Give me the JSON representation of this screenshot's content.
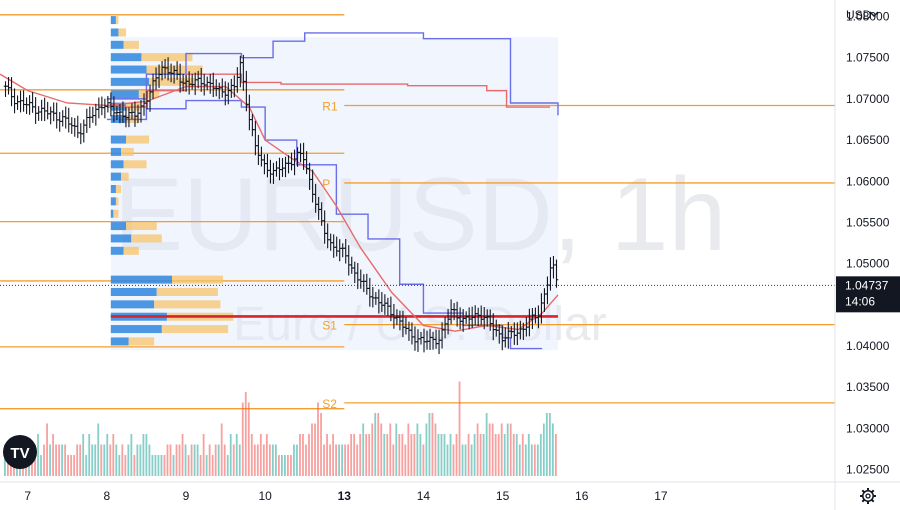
{
  "currency_selector": {
    "label": "USD",
    "icon": "chevron-down-icon"
  },
  "watermark": {
    "symbol": "EURUSD, 1h",
    "description": "Euro / U.S. Dollar"
  },
  "price_tag": {
    "price": "1.04737",
    "countdown": "14:06"
  },
  "settings_icon": "gear-icon",
  "logo": "TV",
  "colors": {
    "up": "#26a69a",
    "down": "#ef5350",
    "level": "#f59d2a",
    "vwap": "#6a6ee8",
    "ma": "#e86a6a",
    "poc": "#d8232a",
    "vp_blue": "#2e86de",
    "vp_orange": "#f5c36a"
  },
  "chart_data": {
    "type": "candlestick",
    "symbol": "EURUSD",
    "interval": "1h",
    "y_axis": {
      "range": [
        1.0235,
        1.082
      ],
      "ticks": [
        "1.08000",
        "1.07500",
        "1.07000",
        "1.06500",
        "1.06000",
        "1.05500",
        "1.05000",
        "1.04500",
        "1.04000",
        "1.03500",
        "1.03000",
        "1.02500"
      ],
      "tick_values": [
        1.08,
        1.075,
        1.07,
        1.065,
        1.06,
        1.055,
        1.05,
        1.045,
        1.04,
        1.035,
        1.03,
        1.025
      ]
    },
    "x_axis": {
      "range": [
        6.65,
        17.2
      ],
      "ticks": [
        "7",
        "8",
        "9",
        "10",
        "13",
        "14",
        "15",
        "16",
        "17"
      ],
      "tick_positions": [
        7,
        8,
        9,
        10,
        11,
        12,
        13,
        14,
        15
      ],
      "bold_ticks": [
        "13"
      ]
    },
    "last_price": 1.04737,
    "pivot_levels": [
      {
        "label": "R1",
        "value": 1.0692,
        "from": 11.0,
        "to": 17.2
      },
      {
        "label": "P",
        "value": 1.0598,
        "from": 11.0,
        "to": 17.2
      },
      {
        "label": "S1",
        "value": 1.0426,
        "from": 11.0,
        "to": 17.2
      },
      {
        "label": "S2",
        "value": 1.0331,
        "from": 11.0,
        "to": 17.2
      },
      {
        "label": "",
        "value": 1.0802,
        "from": 6.65,
        "to": 11.0
      },
      {
        "label": "",
        "value": 1.0711,
        "from": 6.65,
        "to": 11.0
      },
      {
        "label": "",
        "value": 1.0634,
        "from": 6.65,
        "to": 11.0
      },
      {
        "label": "",
        "value": 1.0551,
        "from": 6.65,
        "to": 11.0
      },
      {
        "label": "",
        "value": 1.0479,
        "from": 6.65,
        "to": 11.0
      },
      {
        "label": "",
        "value": 1.0399,
        "from": 6.65,
        "to": 11.0
      },
      {
        "label": "",
        "value": 1.0324,
        "from": 6.65,
        "to": 11.0
      }
    ],
    "close_path": [
      [
        6.65,
        1.0715
      ],
      [
        6.8,
        1.0698
      ],
      [
        7.0,
        1.069
      ],
      [
        7.2,
        1.0683
      ],
      [
        7.4,
        1.0676
      ],
      [
        7.6,
        1.066
      ],
      [
        7.7,
        1.0672
      ],
      [
        7.9,
        1.0695
      ],
      [
        8.05,
        1.0685
      ],
      [
        8.3,
        1.0678
      ],
      [
        8.5,
        1.0705
      ],
      [
        8.65,
        1.074
      ],
      [
        8.8,
        1.073
      ],
      [
        9.0,
        1.0718
      ],
      [
        9.2,
        1.0722
      ],
      [
        9.4,
        1.0708
      ],
      [
        9.6,
        1.0715
      ],
      [
        9.65,
        1.0745
      ],
      [
        9.75,
        1.069
      ],
      [
        9.85,
        1.064
      ],
      [
        9.95,
        1.062
      ],
      [
        10.1,
        1.061
      ],
      [
        10.3,
        1.0625
      ],
      [
        10.45,
        1.0633
      ],
      [
        10.6,
        1.058
      ],
      [
        10.7,
        1.0545
      ],
      [
        10.8,
        1.0525
      ],
      [
        11.0,
        1.051
      ],
      [
        11.1,
        1.049
      ],
      [
        11.25,
        1.047
      ],
      [
        11.4,
        1.0455
      ],
      [
        11.6,
        1.044
      ],
      [
        11.8,
        1.0415
      ],
      [
        12.0,
        1.0405
      ],
      [
        12.2,
        1.041
      ],
      [
        12.35,
        1.0445
      ],
      [
        12.5,
        1.043
      ],
      [
        12.7,
        1.044
      ],
      [
        12.9,
        1.042
      ],
      [
        13.0,
        1.041
      ],
      [
        13.2,
        1.0418
      ],
      [
        13.35,
        1.043
      ],
      [
        13.45,
        1.044
      ],
      [
        13.55,
        1.047
      ],
      [
        13.62,
        1.05
      ],
      [
        13.7,
        1.0474
      ]
    ],
    "moving_average": [
      [
        6.65,
        1.073
      ],
      [
        7.0,
        1.071
      ],
      [
        7.5,
        1.0695
      ],
      [
        8.0,
        1.0692
      ],
      [
        8.5,
        1.0697
      ],
      [
        9.0,
        1.0715
      ],
      [
        9.5,
        1.0715
      ],
      [
        9.8,
        1.069
      ],
      [
        10.0,
        1.065
      ],
      [
        10.3,
        1.063
      ],
      [
        10.6,
        1.0612
      ],
      [
        10.9,
        1.057
      ],
      [
        11.2,
        1.052
      ],
      [
        11.6,
        1.0465
      ],
      [
        12.0,
        1.0425
      ],
      [
        12.4,
        1.0418
      ],
      [
        12.8,
        1.0425
      ],
      [
        13.2,
        1.042
      ],
      [
        13.5,
        1.044
      ],
      [
        13.7,
        1.0462
      ]
    ],
    "vwap_upper": [
      [
        8.0,
        1.07
      ],
      [
        8.5,
        1.073
      ],
      [
        9.0,
        1.0755
      ],
      [
        9.7,
        1.075
      ],
      [
        10.1,
        1.077
      ],
      [
        10.5,
        1.078
      ],
      [
        11.4,
        1.078
      ],
      [
        12.0,
        1.0773
      ],
      [
        13.0,
        1.0773
      ],
      [
        13.1,
        1.0695
      ],
      [
        13.6,
        1.0695
      ],
      [
        13.7,
        1.068
      ]
    ],
    "vwap_mid": [
      [
        8.0,
        1.069
      ],
      [
        8.5,
        1.071
      ],
      [
        9.0,
        1.073
      ],
      [
        9.7,
        1.072
      ],
      [
        10.2,
        1.0718
      ],
      [
        11.0,
        1.0718
      ],
      [
        11.8,
        1.0716
      ],
      [
        12.8,
        1.071
      ],
      [
        13.0,
        1.071
      ],
      [
        13.05,
        1.069
      ],
      [
        13.6,
        1.069
      ]
    ],
    "vwap_lower": [
      [
        8.0,
        1.0675
      ],
      [
        8.5,
        1.0688
      ],
      [
        9.0,
        1.0698
      ],
      [
        9.7,
        1.069
      ],
      [
        10.0,
        1.065
      ],
      [
        10.4,
        1.062
      ],
      [
        10.9,
        1.056
      ],
      [
        11.3,
        1.053
      ],
      [
        11.7,
        1.0475
      ],
      [
        12.0,
        1.044
      ],
      [
        12.5,
        1.0425
      ],
      [
        13.0,
        1.041
      ],
      [
        13.1,
        1.0397
      ],
      [
        13.5,
        1.0397
      ]
    ],
    "volume_profile": {
      "x_start": 8.05,
      "rows": [
        {
          "price": 1.0795,
          "buy": 2,
          "sell": 1
        },
        {
          "price": 1.078,
          "buy": 3,
          "sell": 3
        },
        {
          "price": 1.0765,
          "buy": 5,
          "sell": 6
        },
        {
          "price": 1.075,
          "buy": 12,
          "sell": 20
        },
        {
          "price": 1.0735,
          "buy": 14,
          "sell": 22
        },
        {
          "price": 1.072,
          "buy": 15,
          "sell": 18
        },
        {
          "price": 1.0705,
          "buy": 11,
          "sell": 8
        },
        {
          "price": 1.069,
          "buy": 6,
          "sell": 6
        },
        {
          "price": 1.0675,
          "buy": 6,
          "sell": 5
        },
        {
          "price": 1.065,
          "buy": 6,
          "sell": 9
        },
        {
          "price": 1.0635,
          "buy": 4,
          "sell": 5
        },
        {
          "price": 1.062,
          "buy": 5,
          "sell": 9
        },
        {
          "price": 1.0605,
          "buy": 4,
          "sell": 3
        },
        {
          "price": 1.059,
          "buy": 2,
          "sell": 2
        },
        {
          "price": 1.0575,
          "buy": 2,
          "sell": 1
        },
        {
          "price": 1.056,
          "buy": 1,
          "sell": 2
        },
        {
          "price": 1.0545,
          "buy": 6,
          "sell": 12
        },
        {
          "price": 1.053,
          "buy": 8,
          "sell": 12
        },
        {
          "price": 1.0515,
          "buy": 5,
          "sell": 6
        },
        {
          "price": 1.048,
          "buy": 24,
          "sell": 20
        },
        {
          "price": 1.0465,
          "buy": 18,
          "sell": 24
        },
        {
          "price": 1.045,
          "buy": 17,
          "sell": 26
        },
        {
          "price": 1.0435,
          "buy": 22,
          "sell": 26
        },
        {
          "price": 1.042,
          "buy": 20,
          "sell": 26
        },
        {
          "price": 1.0405,
          "buy": 7,
          "sell": 10
        }
      ],
      "poc": 1.0436
    },
    "volume": [
      3,
      2,
      3,
      2,
      3,
      2,
      3,
      3,
      2,
      3,
      3,
      4,
      2,
      3,
      5,
      3,
      4,
      3,
      3,
      3,
      3,
      2,
      2,
      2,
      3,
      3,
      4,
      2,
      4,
      3,
      3,
      5,
      3,
      3,
      4,
      3,
      4,
      3,
      2,
      3,
      2,
      3,
      4,
      2,
      3,
      3,
      4,
      4,
      3,
      2,
      2,
      2,
      2,
      2,
      3,
      3,
      2,
      3,
      3,
      4,
      3,
      2,
      3,
      3,
      3,
      2,
      4,
      2,
      3,
      2,
      3,
      3,
      5,
      3,
      2,
      4,
      3,
      4,
      3,
      7,
      8,
      7,
      4,
      3,
      3,
      4,
      3,
      4,
      3,
      3,
      3,
      2,
      2,
      2,
      2,
      2,
      3,
      3,
      4,
      4,
      3,
      4,
      5,
      5,
      7,
      6,
      3,
      4,
      3,
      4,
      3,
      3,
      3,
      3,
      3,
      4,
      4,
      3,
      4,
      5,
      4,
      4,
      5,
      6,
      6,
      5,
      4,
      4,
      5,
      3,
      5,
      4,
      4,
      3,
      5,
      4,
      4,
      5,
      4,
      3,
      5,
      6,
      6,
      5,
      4,
      4,
      4,
      3,
      4,
      3,
      4,
      9,
      3,
      3,
      4,
      3,
      4,
      5,
      4,
      4,
      6,
      5,
      5,
      4,
      4,
      5,
      4,
      5,
      5,
      4,
      4,
      3,
      4,
      3,
      4,
      3,
      3,
      3,
      4,
      5,
      6,
      6,
      5,
      4
    ]
  }
}
